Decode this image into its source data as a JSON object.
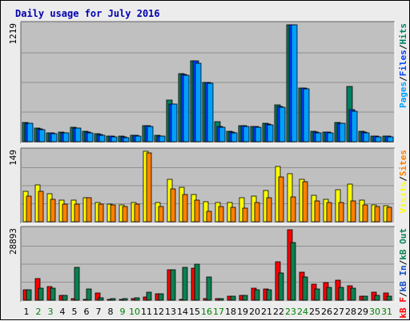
{
  "title": "Daily usage for July 2016",
  "colors": {
    "background": "#ececec",
    "plot": "#c0c0c0",
    "grid": "#909090",
    "pages": "#00a0ff",
    "files": "#0040ff",
    "hits": "#008060",
    "visits": "#ffff00",
    "sites": "#ff8000",
    "kb_in": "#1050c0",
    "kb_out": "#0a8050",
    "kb_f": "#ff0000",
    "title": "#0000b0",
    "weekend_day": "#008000"
  },
  "chart_data": [
    {
      "type": "bar",
      "name": "hits-files-pages",
      "ymax_label": "1219",
      "ylim": [
        0,
        1219
      ],
      "axis_labels": [
        {
          "text": "Pages",
          "color": "#00a0ff"
        },
        {
          "text": "/",
          "color": "#000000"
        },
        {
          "text": "Files",
          "color": "#0040ff"
        },
        {
          "text": "/",
          "color": "#000000"
        },
        {
          "text": "Hits",
          "color": "#008060"
        }
      ],
      "categories": [
        "1",
        "2",
        "3",
        "4",
        "5",
        "6",
        "7",
        "8",
        "9",
        "10",
        "11",
        "12",
        "13",
        "14",
        "15",
        "16",
        "17",
        "18",
        "19",
        "20",
        "21",
        "22",
        "23",
        "24",
        "25",
        "26",
        "27",
        "28",
        "29",
        "30",
        "31"
      ],
      "series": [
        {
          "name": "Hits",
          "values": [
            200,
            140,
            95,
            100,
            150,
            110,
            80,
            60,
            55,
            70,
            170,
            65,
            430,
            710,
            840,
            620,
            210,
            110,
            170,
            160,
            190,
            380,
            1219,
            560,
            110,
            100,
            200,
            580,
            110,
            60,
            60
          ]
        },
        {
          "name": "Files",
          "values": [
            195,
            135,
            90,
            95,
            145,
            100,
            75,
            55,
            50,
            65,
            165,
            60,
            390,
            700,
            840,
            620,
            160,
            100,
            165,
            155,
            180,
            370,
            1219,
            560,
            100,
            100,
            195,
            330,
            100,
            55,
            55
          ]
        },
        {
          "name": "Pages",
          "values": [
            190,
            125,
            85,
            90,
            140,
            95,
            70,
            50,
            45,
            60,
            160,
            55,
            390,
            690,
            820,
            610,
            150,
            95,
            160,
            150,
            175,
            360,
            1219,
            550,
            95,
            95,
            190,
            320,
            95,
            50,
            50
          ]
        }
      ]
    },
    {
      "type": "bar",
      "name": "visits-sites",
      "ymax_label": "149",
      "ylim": [
        0,
        149
      ],
      "axis_labels": [
        {
          "text": "Visits",
          "color": "#ffff00"
        },
        {
          "text": "/",
          "color": "#000000"
        },
        {
          "text": "Sites",
          "color": "#ff8000"
        }
      ],
      "categories": [
        "1",
        "2",
        "3",
        "4",
        "5",
        "6",
        "7",
        "8",
        "9",
        "10",
        "11",
        "12",
        "13",
        "14",
        "15",
        "16",
        "17",
        "18",
        "19",
        "20",
        "21",
        "22",
        "23",
        "24",
        "25",
        "26",
        "27",
        "28",
        "29",
        "30",
        "31"
      ],
      "series": [
        {
          "name": "Visits",
          "values": [
            65,
            78,
            60,
            45,
            46,
            50,
            40,
            38,
            35,
            40,
            149,
            40,
            90,
            72,
            58,
            42,
            40,
            40,
            50,
            54,
            66,
            116,
            102,
            90,
            56,
            48,
            68,
            80,
            46,
            36,
            34
          ]
        },
        {
          "name": "Sites",
          "values": [
            55,
            65,
            47,
            38,
            38,
            50,
            38,
            35,
            32,
            38,
            146,
            32,
            70,
            58,
            45,
            22,
            32,
            30,
            28,
            40,
            50,
            94,
            52,
            84,
            44,
            40,
            40,
            44,
            36,
            32,
            30
          ]
        }
      ]
    },
    {
      "type": "bar",
      "name": "kbytes",
      "ymax_label": "28893",
      "ylim": [
        0,
        28893
      ],
      "axis_labels": [
        {
          "text": "kB F",
          "color": "#ff0000"
        },
        {
          "text": "/",
          "color": "#000000"
        },
        {
          "text": "kB In",
          "color": "#1050c0"
        },
        {
          "text": "/",
          "color": "#000000"
        },
        {
          "text": "kB Out",
          "color": "#0a8050"
        }
      ],
      "categories": [
        "1",
        "2",
        "3",
        "4",
        "5",
        "6",
        "7",
        "8",
        "9",
        "10",
        "11",
        "12",
        "13",
        "14",
        "15",
        "16",
        "17",
        "18",
        "19",
        "20",
        "21",
        "22",
        "23",
        "24",
        "25",
        "26",
        "27",
        "28",
        "29",
        "30",
        "31"
      ],
      "series": [
        {
          "name": "kB F",
          "values": [
            4200,
            9000,
            5500,
            2000,
            500,
            300,
            2800,
            400,
            300,
            600,
            1200,
            2600,
            12400,
            400,
            13200,
            500,
            500,
            1800,
            2000,
            4900,
            4700,
            15600,
            28893,
            11500,
            6600,
            7300,
            8100,
            5900,
            1700,
            3200,
            2800
          ]
        },
        {
          "name": "kB Out",
          "values": [
            4300,
            4800,
            5000,
            2000,
            13400,
            4700,
            1000,
            500,
            500,
            1000,
            3300,
            2700,
            12500,
            13400,
            14900,
            9400,
            600,
            1800,
            1900,
            4200,
            4300,
            11000,
            23700,
            9600,
            4600,
            5100,
            5400,
            5000,
            1500,
            2100,
            1500
          ]
        }
      ]
    }
  ],
  "x_labels": [
    {
      "text": "1",
      "weekend": false
    },
    {
      "text": "2",
      "weekend": true
    },
    {
      "text": "3",
      "weekend": true
    },
    {
      "text": "4",
      "weekend": false
    },
    {
      "text": "5",
      "weekend": false
    },
    {
      "text": "6",
      "weekend": false
    },
    {
      "text": "7",
      "weekend": false
    },
    {
      "text": "8",
      "weekend": false
    },
    {
      "text": "9",
      "weekend": true
    },
    {
      "text": "10",
      "weekend": true
    },
    {
      "text": "11",
      "weekend": false
    },
    {
      "text": "12",
      "weekend": false
    },
    {
      "text": "13",
      "weekend": false
    },
    {
      "text": "14",
      "weekend": false
    },
    {
      "text": "15",
      "weekend": false
    },
    {
      "text": "16",
      "weekend": true
    },
    {
      "text": "17",
      "weekend": true
    },
    {
      "text": "18",
      "weekend": false
    },
    {
      "text": "19",
      "weekend": false
    },
    {
      "text": "20",
      "weekend": false
    },
    {
      "text": "21",
      "weekend": false
    },
    {
      "text": "22",
      "weekend": false
    },
    {
      "text": "23",
      "weekend": true
    },
    {
      "text": "24",
      "weekend": true
    },
    {
      "text": "25",
      "weekend": false
    },
    {
      "text": "26",
      "weekend": false
    },
    {
      "text": "27",
      "weekend": false
    },
    {
      "text": "28",
      "weekend": false
    },
    {
      "text": "29",
      "weekend": false
    },
    {
      "text": "30",
      "weekend": true
    },
    {
      "text": "31",
      "weekend": true
    }
  ]
}
